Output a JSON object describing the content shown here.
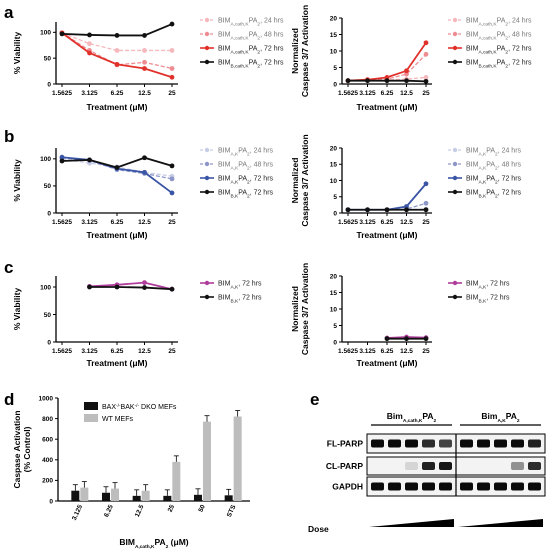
{
  "panels": {
    "a": "a",
    "b": "b",
    "c": "c",
    "d": "d",
    "e": "e"
  },
  "line_x_ticks": [
    "1.5625",
    "3.125",
    "6.25",
    "12.5",
    "25"
  ],
  "chart_data": [
    {
      "id": "a-viability",
      "type": "line",
      "x": [
        1.5625,
        3.125,
        6.25,
        12.5,
        25
      ],
      "xlabel": "Treatment (μM)",
      "ylabel": "% Viability",
      "ylim": [
        0,
        120
      ],
      "yticks": [
        "0",
        "50",
        "100"
      ],
      "legend_position": "right",
      "series": [
        {
          "name": "BIM A,cath,K PA2, 24 hrs",
          "main": "BIM",
          "sub": "A,cath,K",
          "mid": "PA",
          "sub2": "2",
          "rest": ", 24 hrs",
          "color": "#f5b8bd",
          "dashed": true,
          "x": [
            1.5625,
            3.125,
            6.25,
            12.5,
            25
          ],
          "values": [
            99,
            78,
            65,
            65,
            65
          ]
        },
        {
          "name": "BIM A,cath,K PA2, 48 hrs",
          "main": "BIM",
          "sub": "A,cath,K",
          "mid": "PA",
          "sub2": "2",
          "rest": ", 48 hrs",
          "color": "#ee8c91",
          "dashed": true,
          "x": [
            1.5625,
            3.125,
            6.25,
            12.5,
            25
          ],
          "values": [
            99,
            65,
            37,
            42,
            30
          ]
        },
        {
          "name": "BIM A,cath,K PA2, 72 hrs",
          "main": "BIM",
          "sub": "A,cath,K",
          "mid": "PA",
          "sub2": "2",
          "rest": ", 72 hrs",
          "color": "#e0322b",
          "dashed": false,
          "x": [
            1.5625,
            3.125,
            6.25,
            12.5,
            25
          ],
          "values": [
            99,
            60,
            38,
            30,
            13
          ]
        },
        {
          "name": "BIM B,cath,K PA2, 72 hrs",
          "main": "BIM",
          "sub": "B,cath,K",
          "mid": "PA",
          "sub2": "2",
          "rest": ", 72 hrs",
          "color": "#111111",
          "dashed": false,
          "x": [
            1.5625,
            3.125,
            6.25,
            12.5,
            25
          ],
          "values": [
            97,
            95,
            94,
            94,
            116
          ]
        }
      ]
    },
    {
      "id": "a-caspase",
      "type": "line",
      "x": [
        1.5625,
        3.125,
        6.25,
        12.5,
        25
      ],
      "xlabel": "Treatment (μM)",
      "ylabel_line1": "Normalized",
      "ylabel_line2": "Caspase 3/7 Activation",
      "ylim": [
        0,
        20
      ],
      "yticks": [
        "0",
        "5",
        "10",
        "15",
        "20"
      ],
      "legend_position": "right",
      "series": [
        {
          "name": "BIM A,cath,K PA2, 24 hrs",
          "main": "BIM",
          "sub": "A,cath,K",
          "mid": "PA",
          "sub2": "2",
          "rest": ", 24 hrs",
          "color": "#f5b8bd",
          "dashed": true,
          "x": [
            1.5625,
            3.125,
            6.25,
            12.5,
            25
          ],
          "values": [
            1,
            1,
            1.2,
            1.5,
            2
          ]
        },
        {
          "name": "BIM A,cath,K PA2, 48 hrs",
          "main": "BIM",
          "sub": "A,cath,K",
          "mid": "PA",
          "sub2": "2",
          "rest": ", 48 hrs",
          "color": "#ee8c91",
          "dashed": true,
          "x": [
            1.5625,
            3.125,
            6.25,
            12.5,
            25
          ],
          "values": [
            1,
            1.1,
            1.5,
            3,
            9
          ]
        },
        {
          "name": "BIM A,cath,K PA2, 72 hrs",
          "main": "BIM",
          "sub": "A,cath,K",
          "mid": "PA",
          "sub2": "2",
          "rest": ", 72 hrs",
          "color": "#e0322b",
          "dashed": false,
          "x": [
            1.5625,
            3.125,
            6.25,
            12.5,
            25
          ],
          "values": [
            1,
            1.3,
            2,
            4,
            12.5
          ]
        },
        {
          "name": "BIM B,cath,K PA2, 72 hrs",
          "main": "BIM",
          "sub": "B,cath,K",
          "mid": "PA",
          "sub2": "2",
          "rest": ", 72 hrs",
          "color": "#111111",
          "dashed": false,
          "x": [
            1.5625,
            3.125,
            6.25,
            12.5,
            25
          ],
          "values": [
            1,
            1,
            1,
            1,
            0.8
          ]
        }
      ]
    },
    {
      "id": "b-viability",
      "type": "line",
      "x": [
        1.5625,
        3.125,
        6.25,
        12.5,
        25
      ],
      "xlabel": "Treatment (μM)",
      "ylabel": "% Viability",
      "ylim": [
        0,
        120
      ],
      "yticks": [
        "0",
        "50",
        "100"
      ],
      "legend_position": "right",
      "series": [
        {
          "name": "BIM A,K PA2, 24 hrs",
          "main": "BIM",
          "sub": "A,K",
          "mid": "PA",
          "sub2": "2",
          "rest": ", 24 hrs",
          "color": "#c8cde6",
          "dashed": true,
          "x": [
            1.5625,
            3.125,
            6.25,
            12.5,
            25
          ],
          "values": [
            100,
            92,
            85,
            75,
            68
          ]
        },
        {
          "name": "BIM A,K PA2, 48 hrs",
          "main": "BIM",
          "sub": "A,K",
          "mid": "PA",
          "sub2": "2",
          "rest": ", 48 hrs",
          "color": "#8d96c8",
          "dashed": true,
          "x": [
            1.5625,
            3.125,
            6.25,
            12.5,
            25
          ],
          "values": [
            102,
            97,
            80,
            73,
            63
          ]
        },
        {
          "name": "BIM A,K PA2, 72 hrs",
          "main": "BIM",
          "sub": "A,K",
          "mid": "PA",
          "sub2": "2",
          "rest": ", 72 hrs",
          "color": "#3b55a6",
          "dashed": false,
          "x": [
            1.5625,
            3.125,
            6.25,
            12.5,
            25
          ],
          "values": [
            103,
            98,
            82,
            75,
            37
          ]
        },
        {
          "name": "BIM B,K PA2, 72 hrs",
          "main": "BIM",
          "sub": "B,K",
          "mid": "PA",
          "sub2": "2",
          "rest": ", 72 hrs",
          "color": "#111111",
          "dashed": false,
          "x": [
            1.5625,
            3.125,
            6.25,
            12.5,
            25
          ],
          "values": [
            96,
            98,
            84,
            102,
            87
          ]
        }
      ]
    },
    {
      "id": "b-caspase",
      "type": "line",
      "x": [
        1.5625,
        3.125,
        6.25,
        12.5,
        25
      ],
      "xlabel": "Treatment (μM)",
      "ylabel_line1": "Normalized",
      "ylabel_line2": "Caspase 3/7 Activation",
      "ylim": [
        0,
        20
      ],
      "yticks": [
        "0",
        "5",
        "10",
        "15",
        "20"
      ],
      "legend_position": "right",
      "series": [
        {
          "name": "BIM A,K PA2, 24 hrs",
          "main": "BIM",
          "sub": "A,K",
          "mid": "PA",
          "sub2": "2",
          "rest": ", 24 hrs",
          "color": "#c8cde6",
          "dashed": true,
          "x": [
            1.5625,
            3.125,
            6.25,
            12.5,
            25
          ],
          "values": [
            1,
            1,
            1,
            1,
            1.2
          ]
        },
        {
          "name": "BIM A,K PA2, 48 hrs",
          "main": "BIM",
          "sub": "A,K",
          "mid": "PA",
          "sub2": "2",
          "rest": ", 48 hrs",
          "color": "#8d96c8",
          "dashed": true,
          "x": [
            1.5625,
            3.125,
            6.25,
            12.5,
            25
          ],
          "values": [
            1,
            1,
            1,
            1.2,
            3
          ]
        },
        {
          "name": "BIM A,K PA2, 72 hrs",
          "main": "BIM",
          "sub": "A,K",
          "mid": "PA",
          "sub2": "2",
          "rest": ", 72 hrs",
          "color": "#3b55a6",
          "dashed": false,
          "x": [
            1.5625,
            3.125,
            6.25,
            12.5,
            25
          ],
          "values": [
            1,
            1,
            1,
            2,
            9
          ]
        },
        {
          "name": "BIM B,K PA2, 72 hrs",
          "main": "BIM",
          "sub": "B,K",
          "mid": "PA",
          "sub2": "2",
          "rest": ", 72 hrs",
          "color": "#111111",
          "dashed": false,
          "x": [
            1.5625,
            3.125,
            6.25,
            12.5,
            25
          ],
          "values": [
            1,
            1,
            1,
            1,
            1
          ]
        }
      ]
    },
    {
      "id": "c-viability",
      "type": "line",
      "x": [
        1.5625,
        3.125,
        6.25,
        12.5,
        25
      ],
      "xlabel": "Treatment (μM)",
      "ylabel": "% Viability",
      "ylim": [
        0,
        120
      ],
      "yticks": [
        "0",
        "50",
        "100"
      ],
      "legend_position": "right",
      "series": [
        {
          "name": "BIM A,K, 72 hrs",
          "main": "BIM",
          "sub": "A,K",
          "mid": "",
          "sub2": "",
          "rest": ", 72 hrs",
          "color": "#b03c9c",
          "dashed": false,
          "x": [
            3.125,
            6.25,
            12.5,
            25
          ],
          "values": [
            101,
            104,
            108,
            96
          ]
        },
        {
          "name": "BIM B,K, 72 hrs",
          "main": "BIM",
          "sub": "B,K",
          "mid": "",
          "sub2": "",
          "rest": ", 72 hrs",
          "color": "#111111",
          "dashed": false,
          "x": [
            3.125,
            6.25,
            12.5,
            25
          ],
          "values": [
            100,
            100,
            99,
            96
          ]
        }
      ]
    },
    {
      "id": "c-caspase",
      "type": "line",
      "x": [
        1.5625,
        3.125,
        6.25,
        12.5,
        25
      ],
      "xlabel": "Treatment (μM)",
      "ylabel_line1": "Normalized",
      "ylabel_line2": "Caspase 3/7 Activation",
      "ylim": [
        0,
        20
      ],
      "yticks": [
        "0",
        "5",
        "10",
        "15",
        "20"
      ],
      "legend_position": "right",
      "series": [
        {
          "name": "BIM A,K, 72 hrs",
          "main": "BIM",
          "sub": "A,K",
          "mid": "",
          "sub2": "",
          "rest": ", 72 hrs",
          "color": "#b03c9c",
          "dashed": false,
          "x": [
            6.25,
            12.5,
            25
          ],
          "values": [
            1.2,
            1.5,
            1.3
          ]
        },
        {
          "name": "BIM B,K, 72 hrs",
          "main": "BIM",
          "sub": "B,K",
          "mid": "",
          "sub2": "",
          "rest": ", 72 hrs",
          "color": "#111111",
          "dashed": false,
          "x": [
            6.25,
            12.5,
            25
          ],
          "values": [
            1,
            1,
            1
          ]
        }
      ]
    },
    {
      "id": "d-caspase-bar",
      "type": "bar",
      "categories": [
        "3.125",
        "6.25",
        "12.5",
        "25",
        "50",
        "STS"
      ],
      "xlabel_main": "BIM",
      "xlabel_sub": "A,cath,K",
      "xlabel_mid": "PA",
      "xlabel_sub2": "2",
      "xlabel_rest": " (μM)",
      "ylabel_line1": "Caspase Activation",
      "ylabel_line2": "(% Control)",
      "ylim": [
        0,
        1000
      ],
      "yticks": [
        "0",
        "200",
        "400",
        "600",
        "800",
        "1000"
      ],
      "legend_position": "top-left",
      "series": [
        {
          "name": "BAX-/- BAK-/- DKO MEFs",
          "label_parts": [
            "BAX",
            "-/-",
            "BAK",
            "-/-",
            " DKO MEFs"
          ],
          "color": "#111111",
          "values": [
            100,
            80,
            50,
            50,
            60,
            55
          ]
        },
        {
          "name": "WT MEFs",
          "color": "#bdbdbd",
          "values": [
            130,
            120,
            100,
            380,
            770,
            820
          ]
        }
      ]
    }
  ],
  "blot": {
    "group_labels": [
      {
        "main": "Bim",
        "sub": "A,cath,K",
        "mid": "PA",
        "sub2": "2"
      },
      {
        "main": "Bim",
        "sub": "A,K",
        "mid": "PA",
        "sub2": "2"
      }
    ],
    "row_labels": [
      "FL-PARP",
      "CL-PARP",
      "GAPDH"
    ],
    "dose_label": "Dose",
    "fl_parp_intensity": [
      [
        1,
        1,
        1,
        0.85,
        0.75
      ],
      [
        1,
        1,
        1,
        1,
        0.9
      ]
    ],
    "cl_parp_intensity": [
      [
        0,
        0,
        0.1,
        0.9,
        0.95
      ],
      [
        0,
        0,
        0,
        0.4,
        0.85
      ]
    ],
    "gapdh_intensity": [
      [
        1,
        1,
        1,
        1,
        1
      ],
      [
        1,
        1,
        1,
        1,
        1
      ]
    ]
  }
}
